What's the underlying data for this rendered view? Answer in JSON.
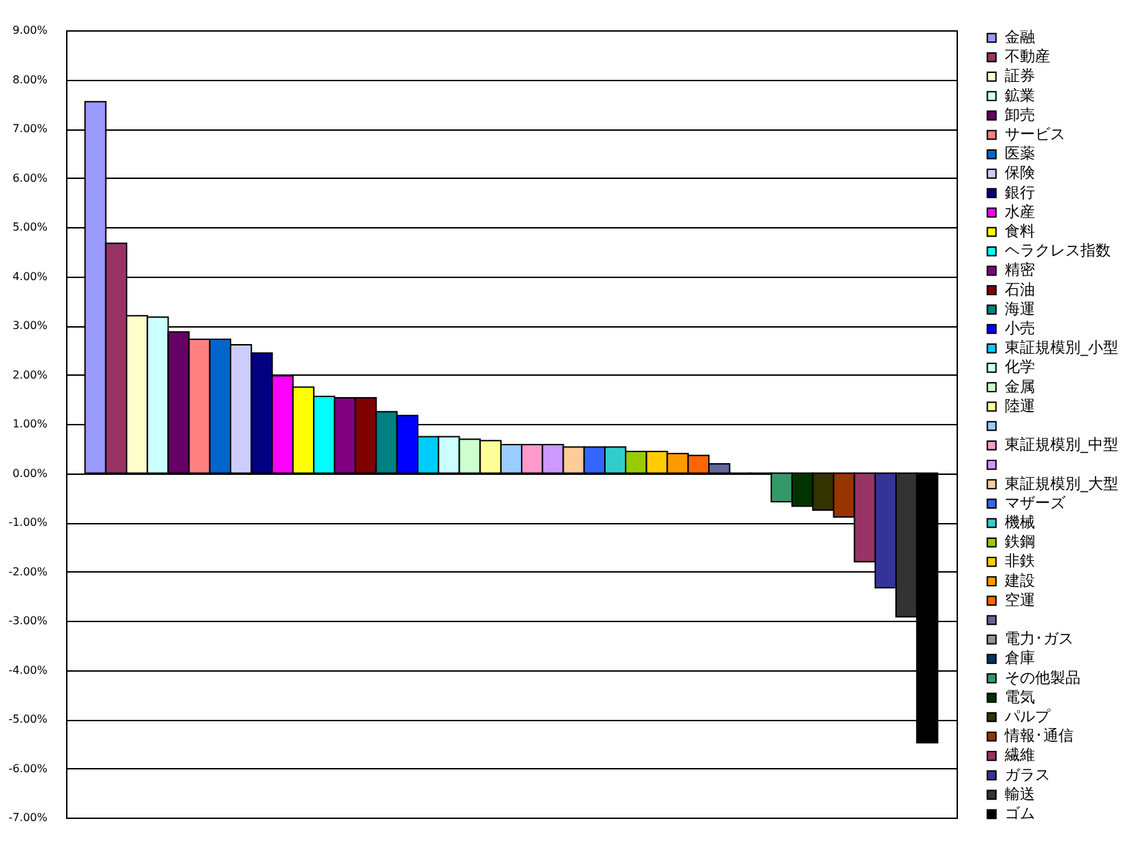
{
  "chart_data": {
    "type": "bar",
    "categories": [
      null
    ],
    "series": [
      {
        "name": "金融",
        "color": "#9999ff",
        "values": [
          7.55
        ]
      },
      {
        "name": "不動産",
        "color": "#993366",
        "values": [
          4.67
        ]
      },
      {
        "name": "証券",
        "color": "#ffffcc",
        "values": [
          3.2
        ]
      },
      {
        "name": "鉱業",
        "color": "#ccffff",
        "values": [
          3.17
        ]
      },
      {
        "name": "卸売",
        "color": "#660066",
        "values": [
          2.87
        ]
      },
      {
        "name": "サービス",
        "color": "#ff8080",
        "values": [
          2.72
        ]
      },
      {
        "name": "医薬",
        "color": "#0066cc",
        "values": [
          2.72
        ]
      },
      {
        "name": "保険",
        "color": "#ccccff",
        "values": [
          2.61
        ]
      },
      {
        "name": "銀行",
        "color": "#000080",
        "values": [
          2.44
        ]
      },
      {
        "name": "水産",
        "color": "#ff00ff",
        "values": [
          1.98
        ]
      },
      {
        "name": "食料",
        "color": "#ffff00",
        "values": [
          1.75
        ]
      },
      {
        "name": "ヘラクレス指数",
        "color": "#00ffff",
        "values": [
          1.56
        ]
      },
      {
        "name": "精密",
        "color": "#800080",
        "values": [
          1.53
        ]
      },
      {
        "name": "石油",
        "color": "#800000",
        "values": [
          1.53
        ]
      },
      {
        "name": "海運",
        "color": "#008080",
        "values": [
          1.25
        ]
      },
      {
        "name": "小売",
        "color": "#0000ff",
        "values": [
          1.17
        ]
      },
      {
        "name": "東証規模別_小型",
        "color": "#00ccff",
        "values": [
          0.74
        ]
      },
      {
        "name": "化学",
        "color": "#ccffff",
        "values": [
          0.74
        ]
      },
      {
        "name": "金属",
        "color": "#ccffcc",
        "values": [
          0.69
        ]
      },
      {
        "name": "陸運",
        "color": "#ffff99",
        "values": [
          0.66
        ]
      },
      {
        "color": "#99ccff",
        "values": [
          0.58
        ]
      },
      {
        "name": "東証規模別_中型",
        "color": "#ff99cc",
        "values": [
          0.58
        ]
      },
      {
        "color": "#cc99ff",
        "values": [
          0.58
        ]
      },
      {
        "name": "東証規模別_大型",
        "color": "#ffcc99",
        "values": [
          0.53
        ]
      },
      {
        "name": "マザーズ",
        "color": "#3366ff",
        "values": [
          0.53
        ]
      },
      {
        "name": "機械",
        "color": "#33cccc",
        "values": [
          0.53
        ]
      },
      {
        "name": "鉄鋼",
        "color": "#99cc00",
        "values": [
          0.44
        ]
      },
      {
        "name": "非鉄",
        "color": "#ffcc00",
        "values": [
          0.44
        ]
      },
      {
        "name": "建設",
        "color": "#ff9900",
        "values": [
          0.4
        ]
      },
      {
        "name": "空運",
        "color": "#ff6600",
        "values": [
          0.36
        ]
      },
      {
        "color": "#666699",
        "values": [
          0.19
        ]
      },
      {
        "name": "電力･ガス",
        "color": "#969696",
        "values": [
          -0.02
        ]
      },
      {
        "name": "倉庫",
        "color": "#003366",
        "values": [
          -0.02
        ]
      },
      {
        "name": "その他製品",
        "color": "#339966",
        "values": [
          -0.58
        ]
      },
      {
        "name": "電気",
        "color": "#003300",
        "values": [
          -0.67
        ]
      },
      {
        "name": "パルプ",
        "color": "#333300",
        "values": [
          -0.75
        ]
      },
      {
        "name": "情報･通信",
        "color": "#993300",
        "values": [
          -0.89
        ]
      },
      {
        "name": "繊維",
        "color": "#993366",
        "values": [
          -1.8
        ]
      },
      {
        "name": "ガラス",
        "color": "#333399",
        "values": [
          -2.33
        ]
      },
      {
        "name": "輸送",
        "color": "#333333",
        "values": [
          -2.92
        ]
      },
      {
        "name": "ゴム",
        "color": "#000000",
        "values": [
          -5.48
        ]
      }
    ],
    "ylim": [
      -7,
      9
    ],
    "yticks": [
      {
        "value": -7,
        "label": "-7.00%"
      },
      {
        "value": -6,
        "label": "-6.00%"
      },
      {
        "value": -5,
        "label": "-5.00%"
      },
      {
        "value": -4,
        "label": "-4.00%"
      },
      {
        "value": -3,
        "label": "-3.00%"
      },
      {
        "value": -2,
        "label": "-2.00%"
      },
      {
        "value": -1,
        "label": "-1.00%"
      },
      {
        "value": 0,
        "label": "0.00%"
      },
      {
        "value": 1,
        "label": "1.00%"
      },
      {
        "value": 2,
        "label": "2.00%"
      },
      {
        "value": 3,
        "label": "3.00%"
      },
      {
        "value": 4,
        "label": "4.00%"
      },
      {
        "value": 5,
        "label": "5.00%"
      },
      {
        "value": 6,
        "label": "6.00%"
      },
      {
        "value": 7,
        "label": "7.00%"
      },
      {
        "value": 8,
        "label": "8.00%"
      },
      {
        "value": 9,
        "label": "9.00%"
      }
    ],
    "grid": "y",
    "legend": "right",
    "tick_labels": "y"
  }
}
